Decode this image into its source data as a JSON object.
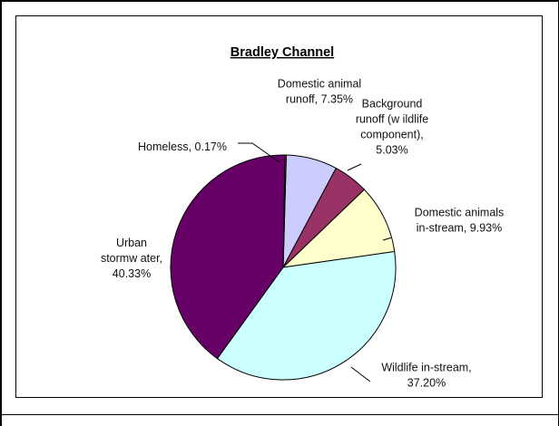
{
  "chart_data": {
    "type": "pie",
    "title": "Bradley Channel",
    "slices": [
      {
        "name": "Domestic animal runoff",
        "value": 7.35,
        "color": "#ccccff",
        "label_lines": [
          "Domestic animal",
          "runoff, 7.35%"
        ]
      },
      {
        "name": "Background runoff (wildlife component)",
        "value": 5.03,
        "color": "#993366",
        "label_lines": [
          "Background",
          "runoff (w ildlife",
          "component),",
          "5.03%"
        ]
      },
      {
        "name": "Domestic animals in-stream",
        "value": 9.93,
        "color": "#ffffcc",
        "label_lines": [
          "Domestic animals",
          "in-stream, 9.93%"
        ]
      },
      {
        "name": "Wildlife in-stream",
        "value": 37.2,
        "color": "#ccffff",
        "label_lines": [
          "Wildlife in-stream,",
          "37.20%"
        ]
      },
      {
        "name": "Urban stormwater",
        "value": 40.33,
        "color": "#660066",
        "label_lines": [
          "Urban",
          "stormw ater,",
          "40.33%"
        ]
      },
      {
        "name": "Homeless",
        "value": 0.17,
        "color": "#ff8080",
        "label_lines": [
          "Homeless, 0.17%"
        ]
      }
    ]
  }
}
